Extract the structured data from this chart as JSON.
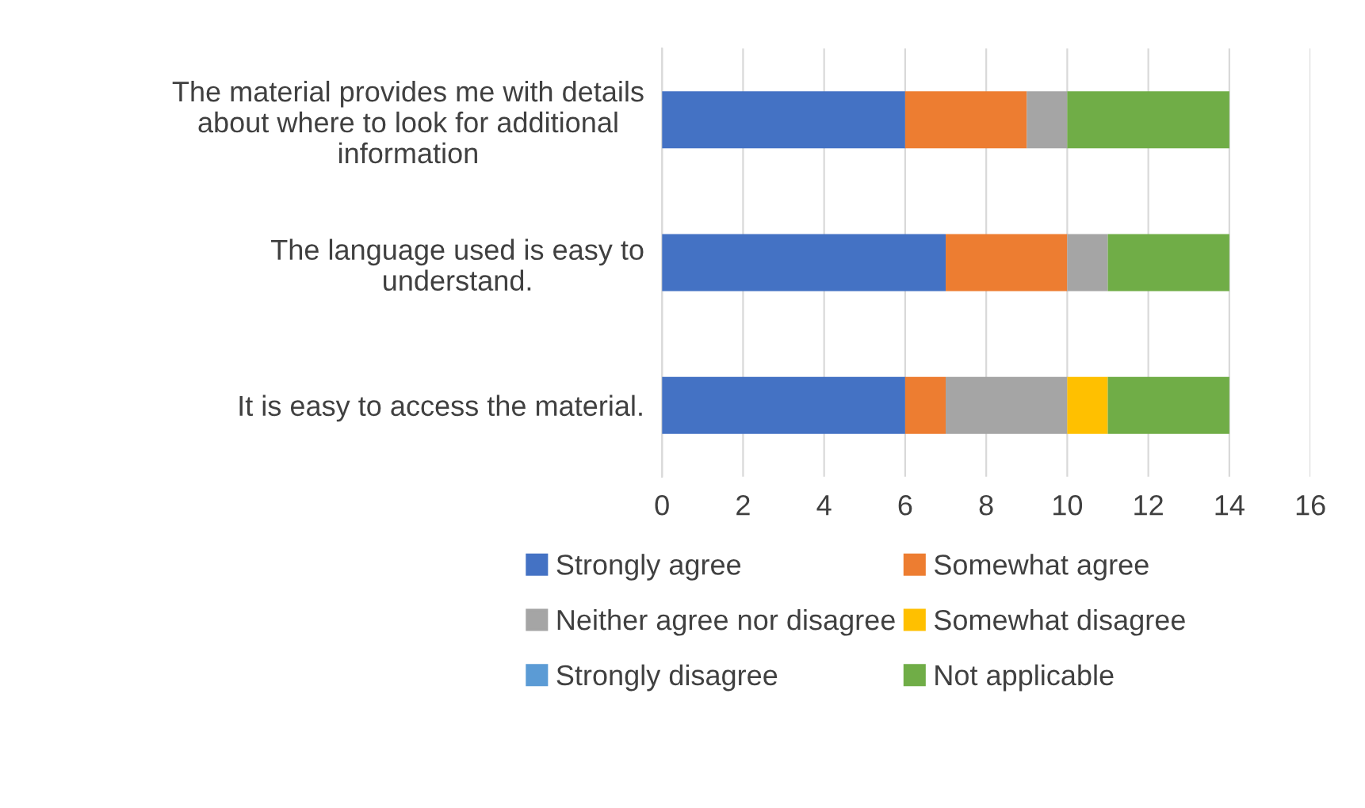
{
  "chart_data": {
    "type": "bar",
    "orientation": "horizontal",
    "stacked": true,
    "categories": [
      "The material provides me with details\nabout where to look for additional\ninformation",
      "The language used is easy to\nunderstand.",
      "It is easy to access the material."
    ],
    "series": [
      {
        "name": "Strongly agree",
        "color": "#4472c4",
        "values": [
          6,
          7,
          6
        ]
      },
      {
        "name": "Somewhat agree",
        "color": "#ed7d31",
        "values": [
          3,
          3,
          1
        ]
      },
      {
        "name": "Neither agree nor disagree",
        "color": "#a5a5a5",
        "values": [
          1,
          1,
          3
        ]
      },
      {
        "name": "Somewhat disagree",
        "color": "#ffc000",
        "values": [
          0,
          0,
          1
        ]
      },
      {
        "name": "Strongly disagree",
        "color": "#5b9bd5",
        "values": [
          0,
          0,
          0
        ]
      },
      {
        "name": "Not applicable",
        "color": "#70ad47",
        "values": [
          4,
          3,
          3
        ]
      }
    ],
    "xlim": [
      0,
      16
    ],
    "xticks": [
      0,
      2,
      4,
      6,
      8,
      10,
      12,
      14,
      16
    ],
    "grid": "x",
    "legend": "bottom"
  }
}
